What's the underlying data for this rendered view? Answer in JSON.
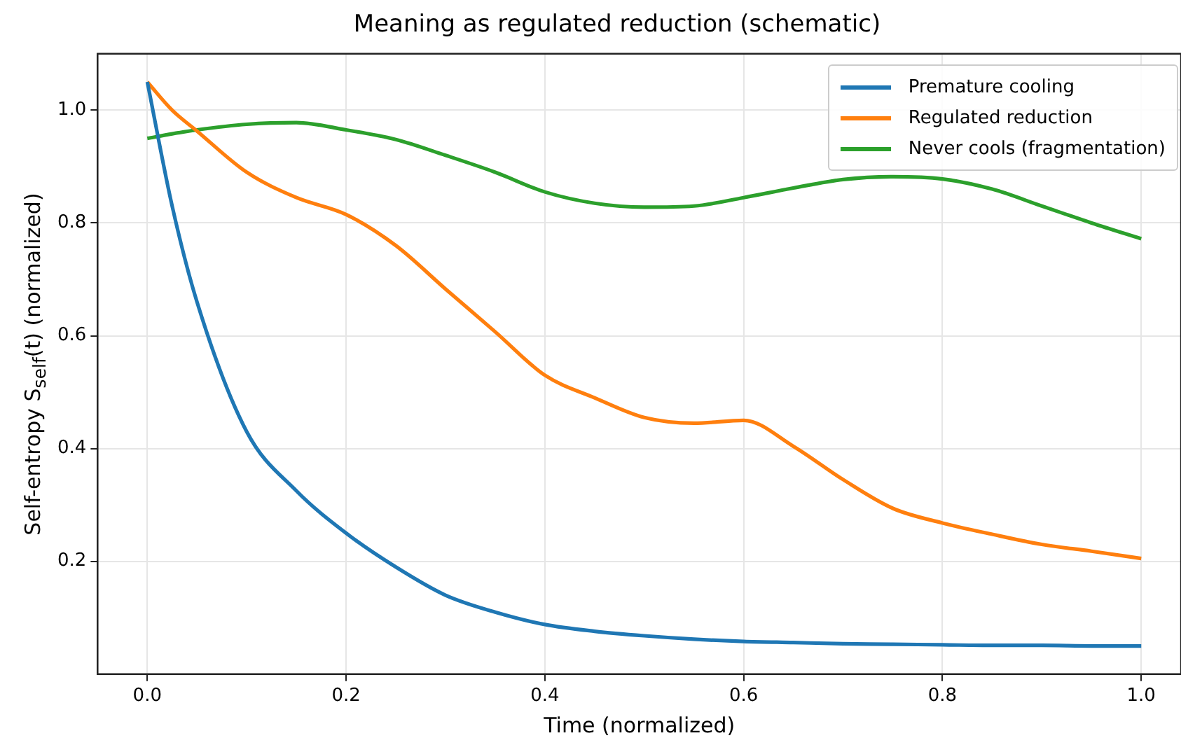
{
  "chart_data": {
    "type": "line",
    "title": "Meaning as regulated reduction (schematic)",
    "xlabel": "Time (normalized)",
    "ylabel": "Self-entropy S$_{self}$(t) (normalized)",
    "x": [
      0,
      0.025,
      0.05,
      0.1,
      0.15,
      0.2,
      0.25,
      0.3,
      0.35,
      0.4,
      0.45,
      0.5,
      0.55,
      0.6,
      0.65,
      0.7,
      0.75,
      0.8,
      0.85,
      0.9,
      0.95,
      1.0
    ],
    "series": [
      {
        "name": "Premature cooling",
        "color": "#1f77b4",
        "values": [
          1.05,
          0.83,
          0.66,
          0.43,
          0.325,
          0.25,
          0.19,
          0.14,
          0.11,
          0.088,
          0.076,
          0.068,
          0.062,
          0.058,
          0.056,
          0.054,
          0.053,
          0.052,
          0.051,
          0.051,
          0.05,
          0.05
        ]
      },
      {
        "name": "Regulated reduction",
        "color": "#ff7f0e",
        "values": [
          1.05,
          1.0,
          0.963,
          0.89,
          0.845,
          0.815,
          0.76,
          0.683,
          0.607,
          0.53,
          0.49,
          0.455,
          0.445,
          0.45,
          0.404,
          0.345,
          0.294,
          0.268,
          0.248,
          0.23,
          0.218,
          0.205
        ]
      },
      {
        "name": "Never cools (fragmentation)",
        "color": "#2ca02c",
        "values": [
          0.95,
          0.958,
          0.965,
          0.975,
          0.978,
          0.965,
          0.948,
          0.92,
          0.89,
          0.855,
          0.835,
          0.828,
          0.83,
          0.845,
          0.862,
          0.877,
          0.882,
          0.878,
          0.86,
          0.83,
          0.8,
          0.772
        ]
      }
    ],
    "xlim": [
      -0.05,
      1.04
    ],
    "xticks": [
      {
        "value": 0,
        "label": "0.0"
      },
      0.2,
      0.4,
      0.6,
      0.8,
      {
        "value": 1,
        "label": "1.0"
      }
    ],
    "ylim": [
      0,
      1.1
    ],
    "yticks": [
      0.2,
      0.4,
      0.6,
      0.8,
      {
        "value": 1,
        "label": "1.0"
      }
    ],
    "grid": true,
    "legend": "top right",
    "marker": "none",
    "line_style": "solid"
  }
}
